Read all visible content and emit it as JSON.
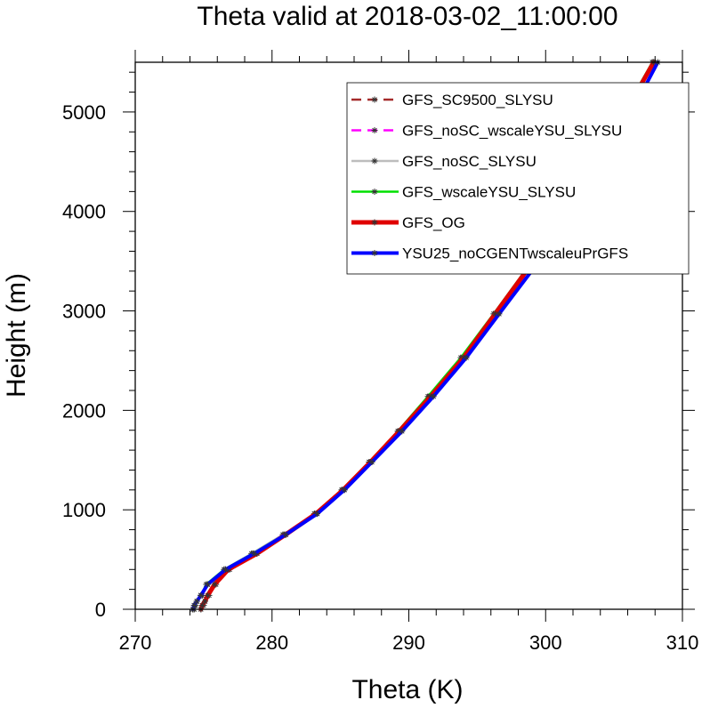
{
  "chart_data": {
    "type": "line",
    "title": "Theta valid at 2018-03-02_11:00:00",
    "xlabel": "Theta (K)",
    "ylabel": "Height (m)",
    "xlim": [
      270,
      310
    ],
    "ylim": [
      0,
      5500
    ],
    "xticks": [
      270,
      280,
      290,
      300,
      310
    ],
    "yticks": [
      0,
      1000,
      2000,
      3000,
      4000,
      5000
    ],
    "legend_position": "top-right",
    "heights": [
      0,
      40,
      80,
      140,
      250,
      400,
      560,
      750,
      960,
      1200,
      1480,
      1790,
      2140,
      2530,
      2970,
      3460,
      4020,
      4600,
      5160,
      5500
    ],
    "series": [
      {
        "name": "GFS_SC9500_SLYSU",
        "color": "#a52a2a",
        "dash": "11,7",
        "width": 2.5,
        "values": [
          274.8,
          275.0,
          275.1,
          275.4,
          275.9,
          276.9,
          278.9,
          281.0,
          283.2,
          285.2,
          287.1,
          289.3,
          291.6,
          294.0,
          296.3,
          299.0,
          301.7,
          304.2,
          306.6,
          307.9
        ]
      },
      {
        "name": "GFS_noSC_wscaleYSU_SLYSU",
        "color": "#ff00ff",
        "dash": "11,7",
        "width": 2.5,
        "values": [
          274.3,
          274.4,
          274.5,
          274.9,
          275.3,
          276.6,
          278.6,
          280.8,
          283.1,
          285.1,
          287.1,
          289.3,
          291.5,
          294.0,
          296.4,
          299.1,
          301.8,
          304.3,
          306.6,
          307.9
        ]
      },
      {
        "name": "GFS_noSC_SLYSU",
        "color": "#bdbdbd",
        "dash": "",
        "width": 2.5,
        "values": [
          274.3,
          274.4,
          274.5,
          274.8,
          275.2,
          276.5,
          278.5,
          280.8,
          283.1,
          285.1,
          287.1,
          289.2,
          291.5,
          293.9,
          296.3,
          298.9,
          301.7,
          304.2,
          306.5,
          307.8
        ]
      },
      {
        "name": "GFS_wscaleYSU_SLYSU",
        "color": "#00e000",
        "dash": "",
        "width": 2.5,
        "values": [
          274.3,
          274.4,
          274.5,
          274.8,
          275.2,
          276.5,
          278.6,
          280.9,
          283.1,
          285.1,
          287.1,
          289.2,
          291.4,
          293.8,
          296.2,
          298.8,
          301.5,
          304.0,
          306.4,
          307.8
        ]
      },
      {
        "name": "GFS_OG",
        "color": "#e00000",
        "dash": "",
        "width": 5,
        "values": [
          274.8,
          274.9,
          275.1,
          275.3,
          275.8,
          276.8,
          278.9,
          281.0,
          283.2,
          285.2,
          287.2,
          289.3,
          291.6,
          294.0,
          296.3,
          298.9,
          301.6,
          304.1,
          306.5,
          307.9
        ]
      },
      {
        "name": "YSU25_noCGENTwscaleuPrGFS",
        "color": "#0000ff",
        "dash": "",
        "width": 4,
        "values": [
          274.2,
          274.3,
          274.5,
          274.8,
          275.3,
          276.6,
          278.7,
          281.0,
          283.3,
          285.3,
          287.3,
          289.5,
          291.8,
          294.2,
          296.6,
          299.3,
          302.0,
          304.5,
          306.9,
          308.2
        ]
      }
    ]
  }
}
